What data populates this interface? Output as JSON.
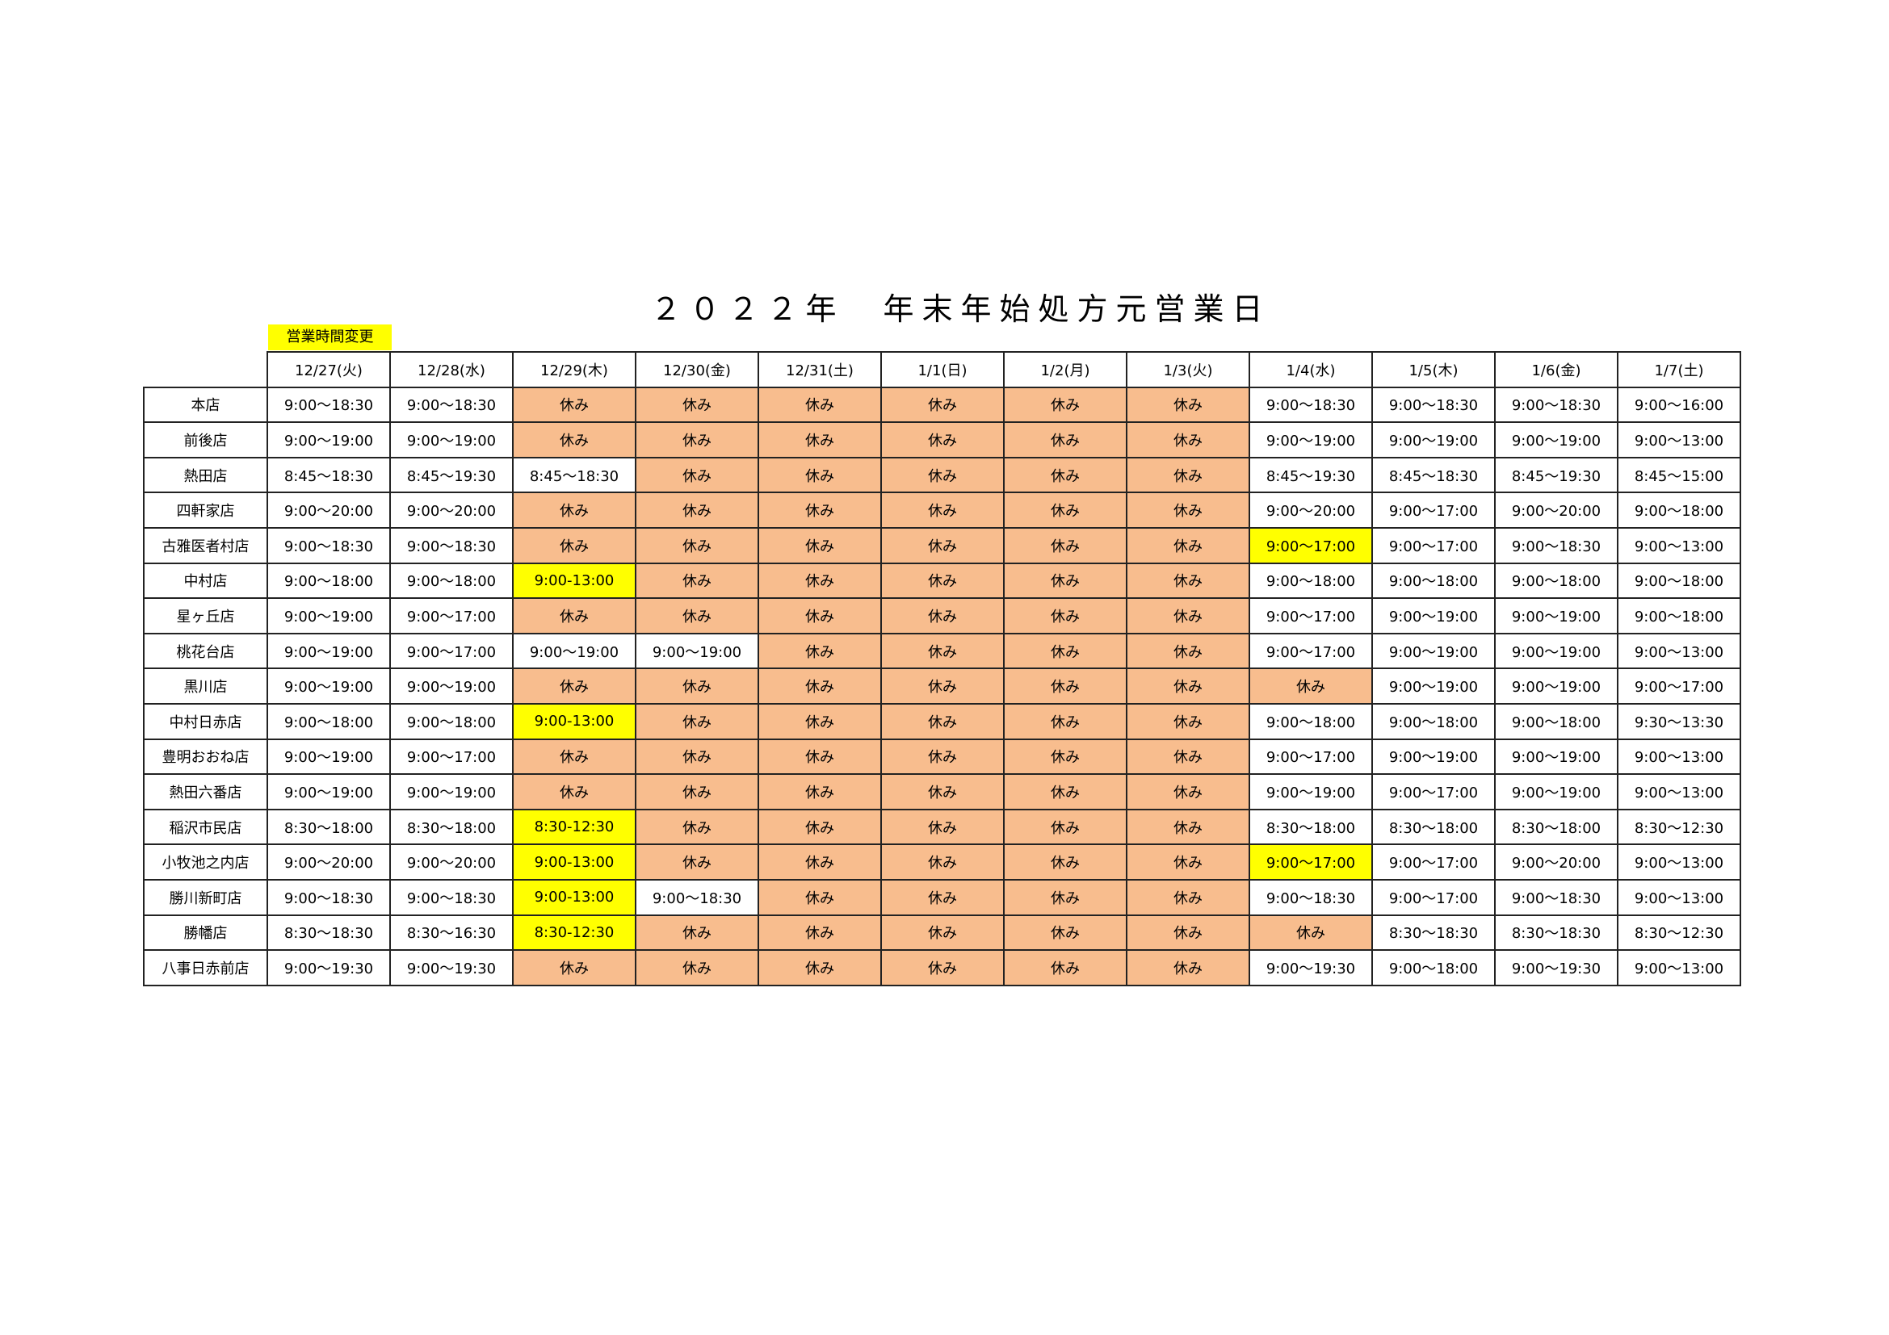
{
  "title": "２０２２年　年末年始処方元営業日",
  "legend": {
    "label": "営業時間変更",
    "color": "#ffff00"
  },
  "colors": {
    "closed": "#f8bd8e",
    "changed": "#ffff00"
  },
  "dates": [
    "12/27(火)",
    "12/28(水)",
    "12/29(木)",
    "12/30(金)",
    "12/31(土)",
    "1/1(日)",
    "1/2(月)",
    "1/3(火)",
    "1/4(水)",
    "1/5(木)",
    "1/6(金)",
    "1/7(土)"
  ],
  "rows": [
    {
      "store": "本店",
      "cells": [
        "9:00～18:30",
        "9:00～18:30",
        "休み",
        "休み",
        "休み",
        "休み",
        "休み",
        "休み",
        "9:00～18:30",
        "9:00～18:30",
        "9:00～18:30",
        "9:00～16:00"
      ],
      "changed": []
    },
    {
      "store": "前後店",
      "cells": [
        "9:00～19:00",
        "9:00～19:00",
        "休み",
        "休み",
        "休み",
        "休み",
        "休み",
        "休み",
        "9:00～19:00",
        "9:00～19:00",
        "9:00～19:00",
        "9:00～13:00"
      ],
      "changed": []
    },
    {
      "store": "熱田店",
      "cells": [
        "8:45～18:30",
        "8:45～19:30",
        "8:45～18:30",
        "休み",
        "休み",
        "休み",
        "休み",
        "休み",
        "8:45～19:30",
        "8:45～18:30",
        "8:45～19:30",
        "8:45～15:00"
      ],
      "changed": []
    },
    {
      "store": "四軒家店",
      "cells": [
        "9:00～20:00",
        "9:00～20:00",
        "休み",
        "休み",
        "休み",
        "休み",
        "休み",
        "休み",
        "9:00～20:00",
        "9:00～17:00",
        "9:00～20:00",
        "9:00～18:00"
      ],
      "changed": []
    },
    {
      "store": "古雅医者村店",
      "cells": [
        "9:00～18:30",
        "9:00～18:30",
        "休み",
        "休み",
        "休み",
        "休み",
        "休み",
        "休み",
        "9:00～17:00",
        "9:00～17:00",
        "9:00～18:30",
        "9:00～13:00"
      ],
      "changed": [
        8
      ]
    },
    {
      "store": "中村店",
      "cells": [
        "9:00～18:00",
        "9:00～18:00",
        "9:00-13:00",
        "休み",
        "休み",
        "休み",
        "休み",
        "休み",
        "9:00～18:00",
        "9:00～18:00",
        "9:00～18:00",
        "9:00～18:00"
      ],
      "changed": [
        2
      ]
    },
    {
      "store": "星ヶ丘店",
      "cells": [
        "9:00～19:00",
        "9:00～17:00",
        "休み",
        "休み",
        "休み",
        "休み",
        "休み",
        "休み",
        "9:00～17:00",
        "9:00～19:00",
        "9:00～19:00",
        "9:00～18:00"
      ],
      "changed": []
    },
    {
      "store": "桃花台店",
      "cells": [
        "9:00～19:00",
        "9:00～17:00",
        "9:00～19:00",
        "9:00～19:00",
        "休み",
        "休み",
        "休み",
        "休み",
        "9:00～17:00",
        "9:00～19:00",
        "9:00～19:00",
        "9:00～13:00"
      ],
      "changed": []
    },
    {
      "store": "黒川店",
      "cells": [
        "9:00～19:00",
        "9:00～19:00",
        "休み",
        "休み",
        "休み",
        "休み",
        "休み",
        "休み",
        "休み",
        "9:00～19:00",
        "9:00～19:00",
        "9:00～17:00"
      ],
      "changed": []
    },
    {
      "store": "中村日赤店",
      "cells": [
        "9:00～18:00",
        "9:00～18:00",
        "9:00-13:00",
        "休み",
        "休み",
        "休み",
        "休み",
        "休み",
        "9:00～18:00",
        "9:00～18:00",
        "9:00～18:00",
        "9:30～13:30"
      ],
      "changed": [
        2
      ]
    },
    {
      "store": "豊明おおね店",
      "cells": [
        "9:00～19:00",
        "9:00～17:00",
        "休み",
        "休み",
        "休み",
        "休み",
        "休み",
        "休み",
        "9:00～17:00",
        "9:00～19:00",
        "9:00～19:00",
        "9:00～13:00"
      ],
      "changed": []
    },
    {
      "store": "熱田六番店",
      "cells": [
        "9:00～19:00",
        "9:00～19:00",
        "休み",
        "休み",
        "休み",
        "休み",
        "休み",
        "休み",
        "9:00～19:00",
        "9:00～17:00",
        "9:00～19:00",
        "9:00～13:00"
      ],
      "changed": []
    },
    {
      "store": "稲沢市民店",
      "cells": [
        "8:30～18:00",
        "8:30～18:00",
        "8:30-12:30",
        "休み",
        "休み",
        "休み",
        "休み",
        "休み",
        "8:30～18:00",
        "8:30～18:00",
        "8:30～18:00",
        "8:30～12:30"
      ],
      "changed": [
        2
      ]
    },
    {
      "store": "小牧池之内店",
      "cells": [
        "9:00～20:00",
        "9:00～20:00",
        "9:00-13:00",
        "休み",
        "休み",
        "休み",
        "休み",
        "休み",
        "9:00～17:00",
        "9:00～17:00",
        "9:00～20:00",
        "9:00～13:00"
      ],
      "changed": [
        2,
        8
      ]
    },
    {
      "store": "勝川新町店",
      "cells": [
        "9:00～18:30",
        "9:00～18:30",
        "9:00-13:00",
        "9:00～18:30",
        "休み",
        "休み",
        "休み",
        "休み",
        "9:00～18:30",
        "9:00～17:00",
        "9:00～18:30",
        "9:00～13:00"
      ],
      "changed": [
        2
      ]
    },
    {
      "store": "勝幡店",
      "cells": [
        "8:30～18:30",
        "8:30～16:30",
        "8:30-12:30",
        "休み",
        "休み",
        "休み",
        "休み",
        "休み",
        "休み",
        "8:30～18:30",
        "8:30～18:30",
        "8:30～12:30"
      ],
      "changed": [
        2
      ]
    },
    {
      "store": "八事日赤前店",
      "cells": [
        "9:00～19:30",
        "9:00～19:30",
        "休み",
        "休み",
        "休み",
        "休み",
        "休み",
        "休み",
        "9:00～19:30",
        "9:00～18:00",
        "9:00～19:30",
        "9:00～13:00"
      ],
      "changed": []
    }
  ]
}
